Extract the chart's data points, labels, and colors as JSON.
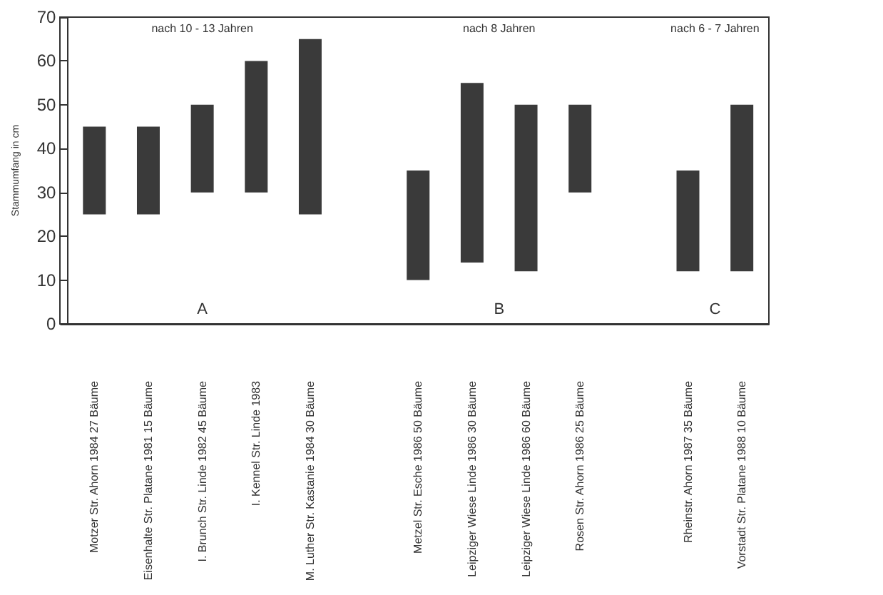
{
  "chart_data": {
    "type": "bar",
    "ylabel": "Stammumfang in cm",
    "categories": [
      "Motzer Str. Ahorn 1984 27 Bäume",
      "Eisenhalte Str. Platane 1981 15 Bäume",
      "I. Brunch Str. Linde 1982 45 Bäume",
      "I. Kennel Str. Linde 1983",
      "M. Luther Str. Kastanie 1984 30 Bäume",
      null,
      "Metzel Str. Esche 1986 50 Bäume",
      "Leipziger Wiese Linde 1986 30 Bäume",
      "Leipziger Wiese Linde 1986 60 Bäume",
      "Rosen Str. Ahorn 1986 25 Bäume",
      null,
      "Rheinstr. Ahorn 1987 35 Bäume",
      "Vorstadt Str. Platane 1988 10 Bäume"
    ],
    "base": [
      25,
      25,
      30,
      30,
      25,
      null,
      10,
      14,
      12,
      30,
      null,
      12,
      12
    ],
    "values": [
      20,
      20,
      20,
      30,
      40,
      null,
      25,
      41,
      38,
      20,
      null,
      23,
      38
    ],
    "color": "#3a3a3a",
    "ylim": [
      0,
      70
    ],
    "yticks": [
      0,
      10,
      20,
      30,
      40,
      50,
      60,
      70
    ],
    "grid": false,
    "annotations": [
      "nach 10 - 13 Jahren",
      "nach 8 Jahren",
      "nach 6 - 7 Jahren",
      "A",
      "B",
      "C"
    ]
  }
}
